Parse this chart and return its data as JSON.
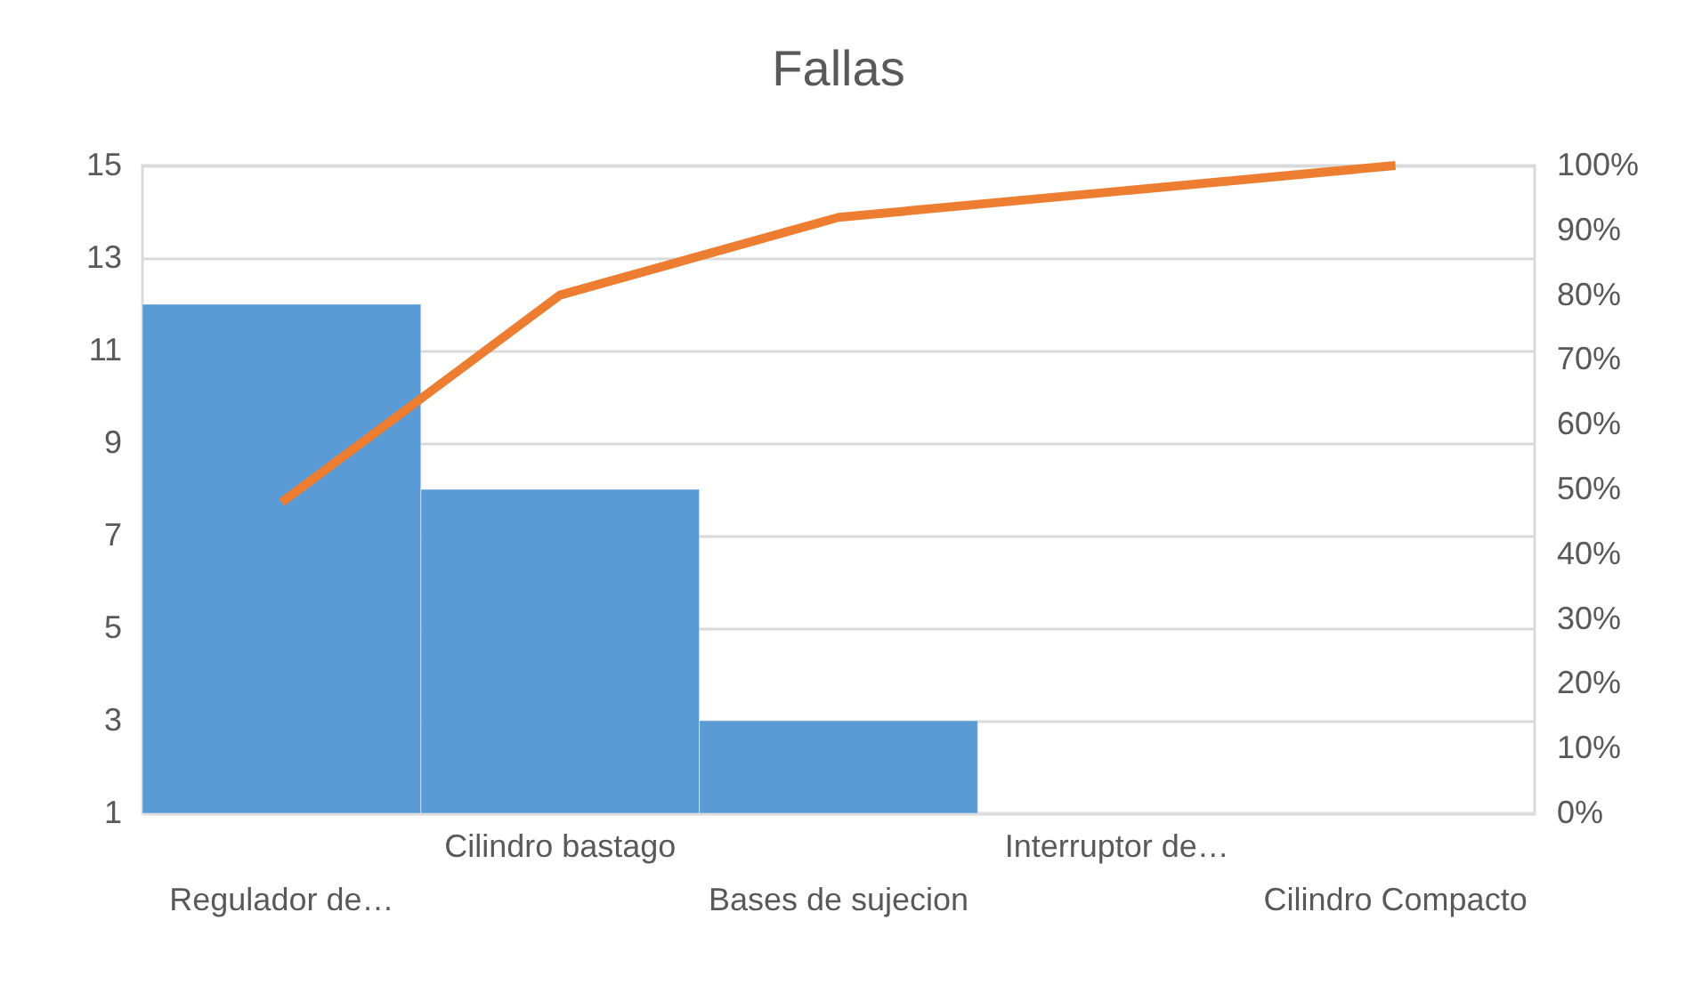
{
  "chart_data": {
    "type": "bar",
    "title": "Fallas",
    "categories": [
      "Regulador de…",
      "Cilindro bastago",
      "Bases de sujecion",
      "Interruptor de…",
      "Cilindro Compacto"
    ],
    "series": [
      {
        "color": "#5b9bd5",
        "values": [
          12,
          8,
          3,
          1,
          1
        ]
      },
      {
        "type": "line",
        "axis": "y2",
        "color": "#ed7d31",
        "values": [
          48,
          80,
          92,
          96,
          100
        ]
      }
    ],
    "ylim": [
      1,
      15
    ],
    "yticks": [
      1,
      3,
      5,
      7,
      9,
      11,
      13,
      15
    ],
    "y2lim": [
      0,
      100
    ],
    "y2ticks": [
      {
        "value": 0,
        "label": "0%"
      },
      {
        "value": 10,
        "label": "10%"
      },
      {
        "value": 20,
        "label": "20%"
      },
      {
        "value": 30,
        "label": "30%"
      },
      {
        "value": 40,
        "label": "40%"
      },
      {
        "value": 50,
        "label": "50%"
      },
      {
        "value": 60,
        "label": "60%"
      },
      {
        "value": 70,
        "label": "70%"
      },
      {
        "value": 80,
        "label": "80%"
      },
      {
        "value": 90,
        "label": "90%"
      },
      {
        "value": 100,
        "label": "100%"
      }
    ],
    "grid": "y",
    "marker": "none",
    "line_style": "solid"
  }
}
